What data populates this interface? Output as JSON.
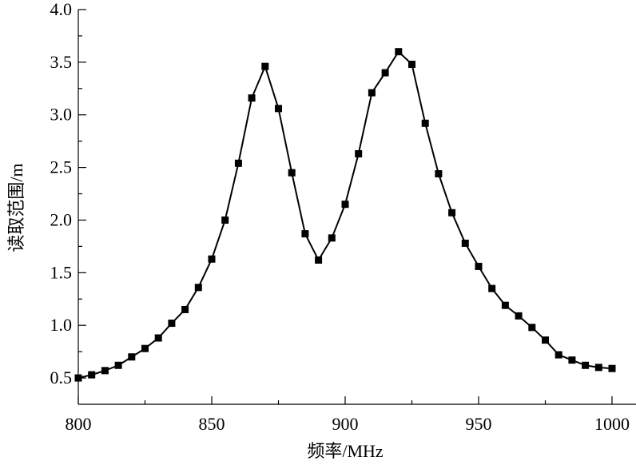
{
  "chart_data": {
    "type": "line",
    "x_label": "频率/MHz",
    "y_label": "读取范围/m",
    "x": [
      800,
      805,
      810,
      815,
      820,
      825,
      830,
      835,
      840,
      845,
      850,
      855,
      860,
      865,
      870,
      875,
      880,
      885,
      890,
      895,
      900,
      905,
      910,
      915,
      920,
      925,
      930,
      935,
      940,
      945,
      950,
      955,
      960,
      965,
      970,
      975,
      980,
      985,
      990,
      995,
      1000
    ],
    "series": [
      {
        "color": "#000000",
        "values": [
          0.5,
          0.53,
          0.57,
          0.62,
          0.7,
          0.78,
          0.88,
          1.02,
          1.15,
          1.36,
          1.63,
          2.0,
          2.54,
          3.16,
          3.46,
          3.06,
          2.45,
          1.87,
          1.62,
          1.83,
          2.15,
          2.63,
          3.21,
          3.4,
          3.6,
          3.48,
          2.92,
          2.44,
          2.07,
          1.78,
          1.56,
          1.35,
          1.19,
          1.09,
          0.98,
          0.86,
          0.72,
          0.67,
          0.62,
          0.6,
          0.59
        ]
      }
    ],
    "xlim": [
      800,
      1000
    ],
    "xticks": [
      800,
      850,
      900,
      950,
      1000
    ],
    "ylim": [
      0.25,
      4.0
    ],
    "yticks": [
      0.5,
      {
        "value": 1.0,
        "label": "1.0"
      },
      1.5,
      {
        "value": 2.0,
        "label": "2.0"
      },
      2.5,
      {
        "value": 3.0,
        "label": "3.0"
      },
      3.5,
      {
        "value": 4.0,
        "label": "4.0"
      }
    ]
  }
}
